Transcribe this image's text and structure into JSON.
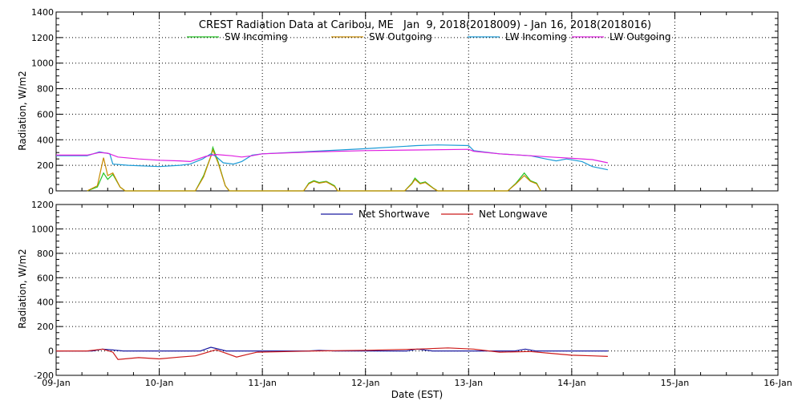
{
  "chart_data": [
    {
      "type": "line",
      "title": "CREST Radiation Data at Caribou, ME   Jan  9, 2018(2018009) - Jan 16, 2018(2018016)",
      "ylabel": "Radiation, W/m2",
      "xlabel": "",
      "xlim": [
        0,
        7
      ],
      "ylim": [
        0,
        1400
      ],
      "yticks": [
        0,
        200,
        400,
        600,
        800,
        1000,
        1200,
        1400
      ],
      "x_tick_labels": [
        "09-Jan",
        "10-Jan",
        "11-Jan",
        "12-Jan",
        "13-Jan",
        "14-Jan",
        "15-Jan",
        "16-Jan"
      ],
      "grid": true,
      "legend_position": "top",
      "series": [
        {
          "name": "SW Incoming",
          "color": "#22c422",
          "points": [
            [
              0.3,
              0
            ],
            [
              0.4,
              30
            ],
            [
              0.46,
              140
            ],
            [
              0.5,
              90
            ],
            [
              0.55,
              130
            ],
            [
              0.62,
              30
            ],
            [
              0.67,
              0
            ],
            [
              1.35,
              0
            ],
            [
              1.43,
              120
            ],
            [
              1.5,
              270
            ],
            [
              1.52,
              340
            ],
            [
              1.57,
              230
            ],
            [
              1.64,
              40
            ],
            [
              1.68,
              0
            ],
            [
              2.4,
              0
            ],
            [
              2.45,
              60
            ],
            [
              2.5,
              80
            ],
            [
              2.55,
              65
            ],
            [
              2.62,
              75
            ],
            [
              2.7,
              40
            ],
            [
              2.73,
              0
            ],
            [
              3.38,
              0
            ],
            [
              3.45,
              60
            ],
            [
              3.48,
              100
            ],
            [
              3.53,
              60
            ],
            [
              3.58,
              70
            ],
            [
              3.66,
              20
            ],
            [
              3.7,
              0
            ],
            [
              4.38,
              0
            ],
            [
              4.46,
              60
            ],
            [
              4.54,
              140
            ],
            [
              4.6,
              80
            ],
            [
              4.66,
              60
            ],
            [
              4.7,
              0
            ]
          ]
        },
        {
          "name": "SW Outgoing",
          "color": "#c88a00",
          "points": [
            [
              0.3,
              0
            ],
            [
              0.4,
              40
            ],
            [
              0.46,
              260
            ],
            [
              0.5,
              120
            ],
            [
              0.55,
              140
            ],
            [
              0.62,
              30
            ],
            [
              0.67,
              0
            ],
            [
              1.35,
              0
            ],
            [
              1.43,
              110
            ],
            [
              1.5,
              270
            ],
            [
              1.52,
              320
            ],
            [
              1.57,
              220
            ],
            [
              1.64,
              40
            ],
            [
              1.68,
              0
            ],
            [
              2.4,
              0
            ],
            [
              2.45,
              55
            ],
            [
              2.5,
              75
            ],
            [
              2.55,
              60
            ],
            [
              2.62,
              70
            ],
            [
              2.7,
              35
            ],
            [
              2.73,
              0
            ],
            [
              3.38,
              0
            ],
            [
              3.45,
              55
            ],
            [
              3.48,
              90
            ],
            [
              3.53,
              55
            ],
            [
              3.58,
              65
            ],
            [
              3.66,
              18
            ],
            [
              3.7,
              0
            ],
            [
              4.38,
              0
            ],
            [
              4.46,
              55
            ],
            [
              4.54,
              120
            ],
            [
              4.6,
              75
            ],
            [
              4.66,
              55
            ],
            [
              4.7,
              0
            ]
          ]
        },
        {
          "name": "LW Incoming",
          "color": "#1a9ad6",
          "points": [
            [
              0,
              275
            ],
            [
              0.3,
              275
            ],
            [
              0.42,
              305
            ],
            [
              0.52,
              290
            ],
            [
              0.55,
              210
            ],
            [
              0.7,
              200
            ],
            [
              1.0,
              190
            ],
            [
              1.2,
              200
            ],
            [
              1.3,
              210
            ],
            [
              1.42,
              250
            ],
            [
              1.5,
              290
            ],
            [
              1.55,
              270
            ],
            [
              1.62,
              220
            ],
            [
              1.72,
              210
            ],
            [
              1.8,
              230
            ],
            [
              1.9,
              280
            ],
            [
              2.0,
              290
            ],
            [
              2.5,
              310
            ],
            [
              3.0,
              330
            ],
            [
              3.5,
              355
            ],
            [
              3.7,
              360
            ],
            [
              4.0,
              355
            ],
            [
              4.05,
              315
            ],
            [
              4.3,
              290
            ],
            [
              4.6,
              275
            ],
            [
              4.75,
              250
            ],
            [
              4.85,
              235
            ],
            [
              4.95,
              250
            ],
            [
              5.1,
              230
            ],
            [
              5.2,
              190
            ],
            [
              5.35,
              165
            ]
          ]
        },
        {
          "name": "LW Outgoing",
          "color": "#e020e0",
          "points": [
            [
              0,
              280
            ],
            [
              0.3,
              280
            ],
            [
              0.42,
              300
            ],
            [
              0.5,
              295
            ],
            [
              0.6,
              265
            ],
            [
              0.8,
              250
            ],
            [
              1.0,
              240
            ],
            [
              1.2,
              235
            ],
            [
              1.3,
              230
            ],
            [
              1.45,
              270
            ],
            [
              1.55,
              285
            ],
            [
              1.7,
              275
            ],
            [
              1.8,
              265
            ],
            [
              1.9,
              275
            ],
            [
              2.0,
              290
            ],
            [
              2.5,
              305
            ],
            [
              3.0,
              315
            ],
            [
              3.5,
              320
            ],
            [
              4.0,
              325
            ],
            [
              4.05,
              310
            ],
            [
              4.3,
              290
            ],
            [
              4.6,
              275
            ],
            [
              4.8,
              265
            ],
            [
              5.0,
              255
            ],
            [
              5.2,
              245
            ],
            [
              5.35,
              220
            ]
          ]
        }
      ]
    },
    {
      "type": "line",
      "title": "",
      "ylabel": "Radiation, W/m2",
      "xlabel": "Date (EST)",
      "xlim": [
        0,
        7
      ],
      "ylim": [
        -200,
        1200
      ],
      "yticks": [
        -200,
        0,
        200,
        400,
        600,
        800,
        1000,
        1200
      ],
      "x_tick_labels": [
        "09-Jan",
        "10-Jan",
        "11-Jan",
        "12-Jan",
        "13-Jan",
        "14-Jan",
        "15-Jan",
        "16-Jan"
      ],
      "grid": true,
      "legend_position": "top",
      "series": [
        {
          "name": "Net Shortwave",
          "color": "#1a1aa0",
          "points": [
            [
              0,
              0
            ],
            [
              0.35,
              0
            ],
            [
              0.45,
              15
            ],
            [
              0.55,
              8
            ],
            [
              0.65,
              0
            ],
            [
              1.4,
              0
            ],
            [
              1.5,
              30
            ],
            [
              1.55,
              20
            ],
            [
              1.65,
              0
            ],
            [
              2.45,
              0
            ],
            [
              2.55,
              5
            ],
            [
              2.7,
              0
            ],
            [
              3.4,
              0
            ],
            [
              3.5,
              15
            ],
            [
              3.65,
              0
            ],
            [
              4.45,
              0
            ],
            [
              4.55,
              15
            ],
            [
              4.65,
              0
            ],
            [
              5.35,
              0
            ]
          ]
        },
        {
          "name": "Net Longwave",
          "color": "#cc1a1a",
          "points": [
            [
              0,
              0
            ],
            [
              0.3,
              0
            ],
            [
              0.45,
              15
            ],
            [
              0.55,
              -10
            ],
            [
              0.6,
              -70
            ],
            [
              0.8,
              -55
            ],
            [
              1.0,
              -65
            ],
            [
              1.2,
              -50
            ],
            [
              1.35,
              -40
            ],
            [
              1.45,
              -15
            ],
            [
              1.55,
              10
            ],
            [
              1.65,
              -20
            ],
            [
              1.75,
              -50
            ],
            [
              1.85,
              -30
            ],
            [
              1.95,
              -10
            ],
            [
              2.5,
              0
            ],
            [
              3.0,
              5
            ],
            [
              3.5,
              15
            ],
            [
              3.8,
              25
            ],
            [
              4.05,
              15
            ],
            [
              4.3,
              -10
            ],
            [
              4.6,
              -5
            ],
            [
              4.8,
              -20
            ],
            [
              5.0,
              -35
            ],
            [
              5.2,
              -40
            ],
            [
              5.35,
              -45
            ]
          ]
        }
      ]
    }
  ]
}
